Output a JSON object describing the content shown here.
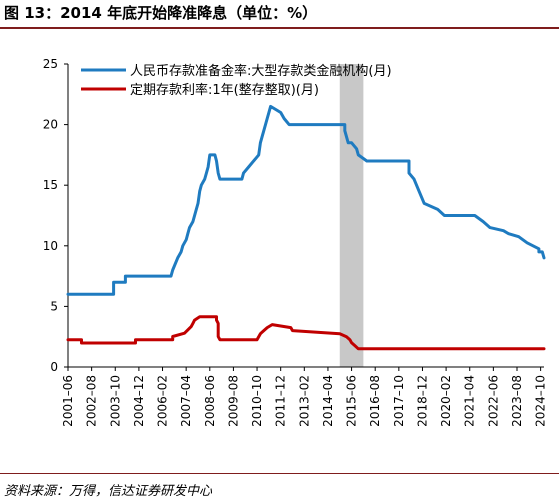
{
  "figure": {
    "title": "图 13：2014 年底开始降准降息（单位：%）",
    "source": "资料来源：万得，信达证券研发中心"
  },
  "colors": {
    "rule": "#7f1d1d",
    "rrr": "#1f7bc0",
    "deposit": "#c00000",
    "shade": "#c8c8c8"
  },
  "chart_data": {
    "type": "line",
    "ylim": [
      0,
      25
    ],
    "yticks": [
      0,
      5,
      10,
      15,
      20,
      25
    ],
    "xlim": [
      "2001-06",
      "2024-12"
    ],
    "xticks": [
      "2001–06",
      "2002–08",
      "2003–10",
      "2004–12",
      "2006–02",
      "2007–04",
      "2008–06",
      "2009–08",
      "2010–10",
      "2011–12",
      "2013–02",
      "2014–04",
      "2015–06",
      "2016–08",
      "2017–10",
      "2018–12",
      "2020–02",
      "2021–04",
      "2022–06",
      "2023–08",
      "2024–10"
    ],
    "shaded_period": [
      "2014-11",
      "2016-01"
    ],
    "legend_position": "top-left",
    "series": [
      {
        "name": "人民币存款准备金率:大型存款类金融机构(月)",
        "points": [
          [
            "2001-06",
            6.0
          ],
          [
            "2003-09",
            6.0
          ],
          [
            "2003-09",
            7.0
          ],
          [
            "2004-04",
            7.0
          ],
          [
            "2004-04",
            7.5
          ],
          [
            "2006-07",
            7.5
          ],
          [
            "2006-08",
            8.0
          ],
          [
            "2006-11",
            9.0
          ],
          [
            "2007-01",
            9.5
          ],
          [
            "2007-02",
            10.0
          ],
          [
            "2007-04",
            10.5
          ],
          [
            "2007-05",
            11.0
          ],
          [
            "2007-06",
            11.5
          ],
          [
            "2007-08",
            12.0
          ],
          [
            "2007-09",
            12.5
          ],
          [
            "2007-10",
            13.0
          ],
          [
            "2007-11",
            13.5
          ],
          [
            "2007-12",
            14.5
          ],
          [
            "2008-01",
            15.0
          ],
          [
            "2008-03",
            15.5
          ],
          [
            "2008-04",
            16.0
          ],
          [
            "2008-05",
            16.5
          ],
          [
            "2008-06",
            17.5
          ],
          [
            "2008-09",
            17.5
          ],
          [
            "2008-10",
            17.0
          ],
          [
            "2008-11",
            16.0
          ],
          [
            "2008-12",
            15.5
          ],
          [
            "2010-01",
            15.5
          ],
          [
            "2010-02",
            16.0
          ],
          [
            "2010-05",
            16.5
          ],
          [
            "2010-11",
            17.5
          ],
          [
            "2010-12",
            18.5
          ],
          [
            "2011-01",
            19.0
          ],
          [
            "2011-02",
            19.5
          ],
          [
            "2011-03",
            20.0
          ],
          [
            "2011-04",
            20.5
          ],
          [
            "2011-05",
            21.0
          ],
          [
            "2011-06",
            21.5
          ],
          [
            "2011-12",
            21.0
          ],
          [
            "2012-02",
            20.5
          ],
          [
            "2012-05",
            20.0
          ],
          [
            "2015-02",
            20.0
          ],
          [
            "2015-02",
            19.5
          ],
          [
            "2015-04",
            18.5
          ],
          [
            "2015-06",
            18.5
          ],
          [
            "2015-09",
            18.0
          ],
          [
            "2015-10",
            17.5
          ],
          [
            "2016-03",
            17.0
          ],
          [
            "2018-04",
            17.0
          ],
          [
            "2018-04",
            16.0
          ],
          [
            "2018-07",
            15.5
          ],
          [
            "2018-10",
            14.5
          ],
          [
            "2019-01",
            13.5
          ],
          [
            "2019-09",
            13.0
          ],
          [
            "2020-01",
            12.5
          ],
          [
            "2021-07",
            12.5
          ],
          [
            "2021-12",
            12.0
          ],
          [
            "2022-04",
            11.5
          ],
          [
            "2022-12",
            11.25
          ],
          [
            "2023-03",
            11.0
          ],
          [
            "2023-09",
            10.75
          ],
          [
            "2024-02",
            10.25
          ],
          [
            "2024-09",
            9.75
          ],
          [
            "2024-09",
            9.5
          ],
          [
            "2024-11",
            9.5
          ],
          [
            "2024-12",
            9.0
          ]
        ]
      },
      {
        "name": "定期存款利率:1年(整存整取)(月)",
        "points": [
          [
            "2001-06",
            2.25
          ],
          [
            "2002-02",
            2.25
          ],
          [
            "2002-02",
            1.98
          ],
          [
            "2004-10",
            1.98
          ],
          [
            "2004-10",
            2.25
          ],
          [
            "2006-08",
            2.25
          ],
          [
            "2006-08",
            2.52
          ],
          [
            "2007-03",
            2.79
          ],
          [
            "2007-05",
            3.06
          ],
          [
            "2007-07",
            3.33
          ],
          [
            "2007-08",
            3.6
          ],
          [
            "2007-09",
            3.87
          ],
          [
            "2007-12",
            4.14
          ],
          [
            "2008-10",
            4.14
          ],
          [
            "2008-10",
            3.87
          ],
          [
            "2008-11",
            3.6
          ],
          [
            "2008-11",
            2.52
          ],
          [
            "2008-12",
            2.25
          ],
          [
            "2010-10",
            2.25
          ],
          [
            "2010-12",
            2.75
          ],
          [
            "2011-02",
            3.0
          ],
          [
            "2011-04",
            3.25
          ],
          [
            "2011-07",
            3.5
          ],
          [
            "2012-06",
            3.25
          ],
          [
            "2012-07",
            3.0
          ],
          [
            "2014-11",
            2.75
          ],
          [
            "2015-03",
            2.5
          ],
          [
            "2015-05",
            2.25
          ],
          [
            "2015-06",
            2.0
          ],
          [
            "2015-08",
            1.75
          ],
          [
            "2015-10",
            1.5
          ],
          [
            "2024-12",
            1.5
          ]
        ]
      }
    ]
  }
}
